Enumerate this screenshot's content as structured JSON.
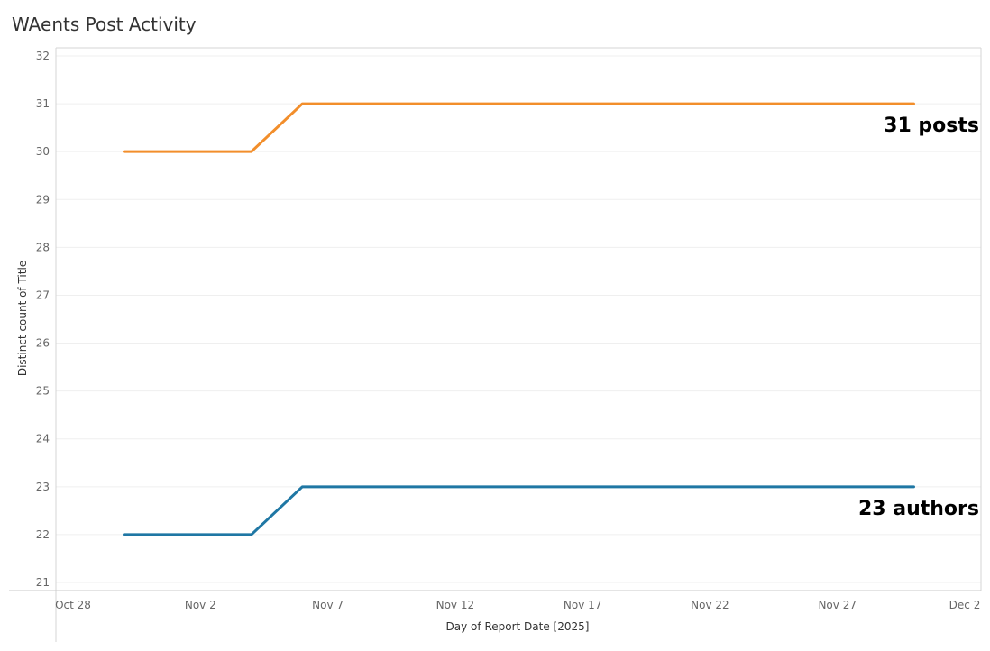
{
  "title": "WAents Post Activity",
  "chart_data": {
    "type": "line",
    "title": "WAents Post Activity",
    "xlabel": "Day of Report Date [2025]",
    "ylabel": "Distinct count of Title",
    "x_ticks": [
      {
        "label": "Oct 28",
        "day": 0
      },
      {
        "label": "Nov 2",
        "day": 5
      },
      {
        "label": "Nov 7",
        "day": 10
      },
      {
        "label": "Nov 12",
        "day": 15
      },
      {
        "label": "Nov 17",
        "day": 20
      },
      {
        "label": "Nov 22",
        "day": 25
      },
      {
        "label": "Nov 27",
        "day": 30
      },
      {
        "label": "Dec 2",
        "day": 35
      }
    ],
    "xlim_days": [
      0,
      35
    ],
    "ylim": [
      21,
      32
    ],
    "y_ticks": [
      21,
      22,
      23,
      24,
      25,
      26,
      27,
      28,
      29,
      30,
      31,
      32
    ],
    "grid": "horizontal",
    "series": [
      {
        "color": "#f28e2b",
        "end_label": "31 posts",
        "points": [
          {
            "day": 2,
            "value": 30
          },
          {
            "day": 7,
            "value": 30
          },
          {
            "day": 9,
            "value": 31
          },
          {
            "day": 33,
            "value": 31
          }
        ]
      },
      {
        "color": "#1f77a4",
        "end_label": "23 authors",
        "points": [
          {
            "day": 2,
            "value": 22
          },
          {
            "day": 7,
            "value": 22
          },
          {
            "day": 9,
            "value": 23
          },
          {
            "day": 33,
            "value": 23
          }
        ]
      }
    ]
  }
}
